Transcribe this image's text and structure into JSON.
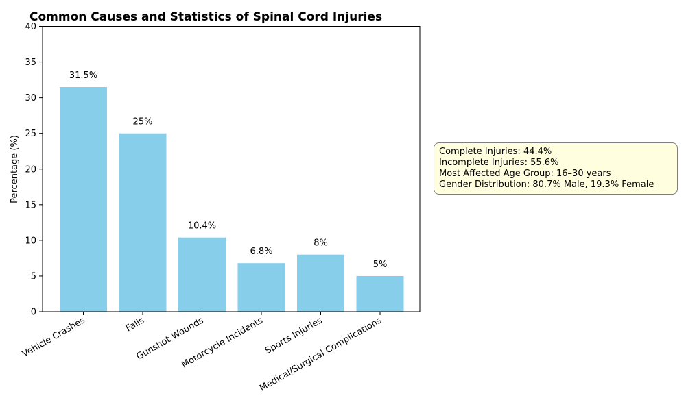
{
  "chart_data": {
    "type": "bar",
    "title": "Common Causes and Statistics of Spinal Cord Injuries",
    "xlabel": "",
    "ylabel": "Percentage (%)",
    "categories": [
      "Vehicle Crashes",
      "Falls",
      "Gunshot Wounds",
      "Motorcycle Incidents",
      "Sports Injuries",
      "Medical/Surgical Complications"
    ],
    "values": [
      31.5,
      25,
      10.4,
      6.8,
      8,
      5
    ],
    "value_labels": [
      "31.5%",
      "25%",
      "10.4%",
      "6.8%",
      "8%",
      "5%"
    ],
    "ylim": [
      0,
      40
    ],
    "yticks": [
      0,
      5,
      10,
      15,
      20,
      25,
      30,
      35,
      40
    ],
    "ytick_labels": [
      "0",
      "5",
      "10",
      "15",
      "20",
      "25",
      "30",
      "35",
      "40"
    ],
    "grid": false,
    "bar_color": "#87ceeb"
  },
  "stats_box": {
    "lines": [
      "Complete Injuries: 44.4%",
      "Incomplete Injuries: 55.6%",
      "Most Affected Age Group: 16–30 years",
      "Gender Distribution: 80.7% Male, 19.3% Female"
    ],
    "background": "#ffffe0",
    "border": "#808080"
  }
}
